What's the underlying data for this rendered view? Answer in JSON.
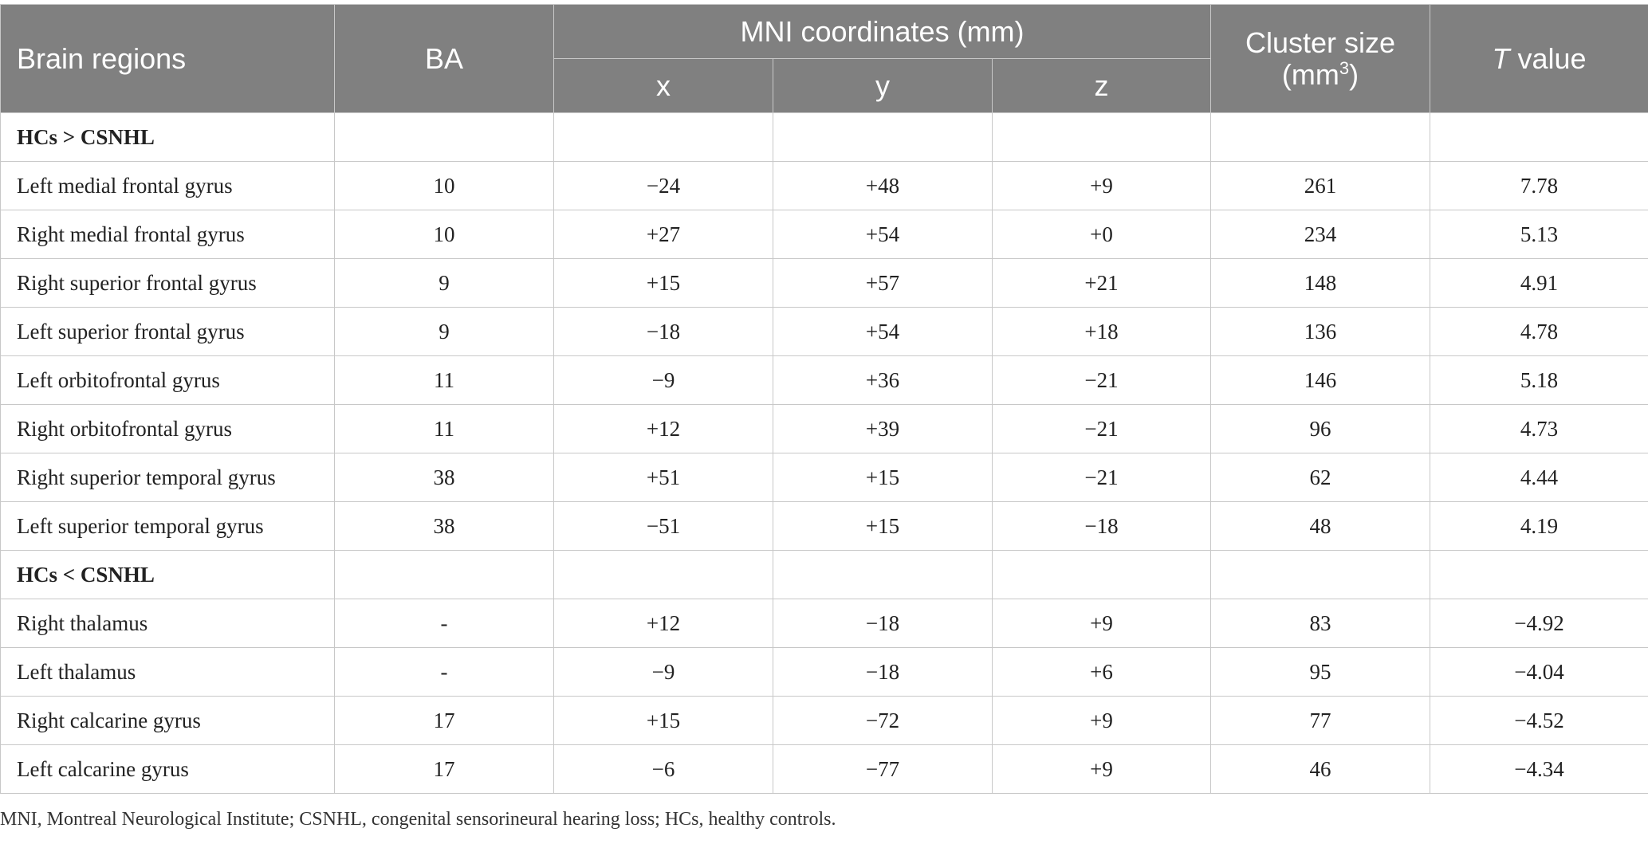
{
  "table": {
    "headers": {
      "brain_regions": "Brain regions",
      "ba": "BA",
      "mni": "MNI coordinates (mm)",
      "x": "x",
      "y": "y",
      "z": "z",
      "cluster_size": "Cluster size",
      "cluster_unit_base": "(mm",
      "cluster_unit_sup": "3",
      "cluster_unit_close": ")",
      "t_italic": "T",
      "t_rest": " value"
    },
    "rows": [
      {
        "region": "HCs > CSNHL",
        "ba": "",
        "x": "",
        "y": "",
        "z": "",
        "cluster": "",
        "t": ""
      },
      {
        "region": "Left medial frontal gyrus",
        "ba": "10",
        "x": "−24",
        "y": "+48",
        "z": "+9",
        "cluster": "261",
        "t": "7.78"
      },
      {
        "region": "Right medial frontal gyrus",
        "ba": "10",
        "x": "+27",
        "y": "+54",
        "z": "+0",
        "cluster": "234",
        "t": "5.13"
      },
      {
        "region": "Right superior frontal gyrus",
        "ba": "9",
        "x": "+15",
        "y": "+57",
        "z": "+21",
        "cluster": "148",
        "t": "4.91"
      },
      {
        "region": "Left superior frontal gyrus",
        "ba": "9",
        "x": "−18",
        "y": "+54",
        "z": "+18",
        "cluster": "136",
        "t": "4.78"
      },
      {
        "region": "Left orbitofrontal gyrus",
        "ba": "11",
        "x": "−9",
        "y": "+36",
        "z": "−21",
        "cluster": "146",
        "t": "5.18"
      },
      {
        "region": "Right orbitofrontal gyrus",
        "ba": "11",
        "x": "+12",
        "y": "+39",
        "z": "−21",
        "cluster": "96",
        "t": "4.73"
      },
      {
        "region": "Right superior temporal gyrus",
        "ba": "38",
        "x": "+51",
        "y": "+15",
        "z": "−21",
        "cluster": "62",
        "t": "4.44"
      },
      {
        "region": "Left superior temporal gyrus",
        "ba": "38",
        "x": "−51",
        "y": "+15",
        "z": "−18",
        "cluster": "48",
        "t": "4.19"
      },
      {
        "region": "HCs < CSNHL",
        "ba": "",
        "x": "",
        "y": "",
        "z": "",
        "cluster": "",
        "t": ""
      },
      {
        "region": "Right thalamus",
        "ba": "-",
        "x": "+12",
        "y": "−18",
        "z": "+9",
        "cluster": "83",
        "t": "−4.92"
      },
      {
        "region": "Left thalamus",
        "ba": "-",
        "x": "−9",
        "y": "−18",
        "z": "+6",
        "cluster": "95",
        "t": "−4.04"
      },
      {
        "region": "Right calcarine gyrus",
        "ba": "17",
        "x": "+15",
        "y": "−72",
        "z": "+9",
        "cluster": "77",
        "t": "−4.52"
      },
      {
        "region": "Left calcarine gyrus",
        "ba": "17",
        "x": "−6",
        "y": "−77",
        "z": "+9",
        "cluster": "46",
        "t": "−4.34"
      }
    ]
  },
  "footnote": "MNI, Montreal Neurological Institute; CSNHL, congenital sensorineural hearing loss; HCs, healthy controls."
}
